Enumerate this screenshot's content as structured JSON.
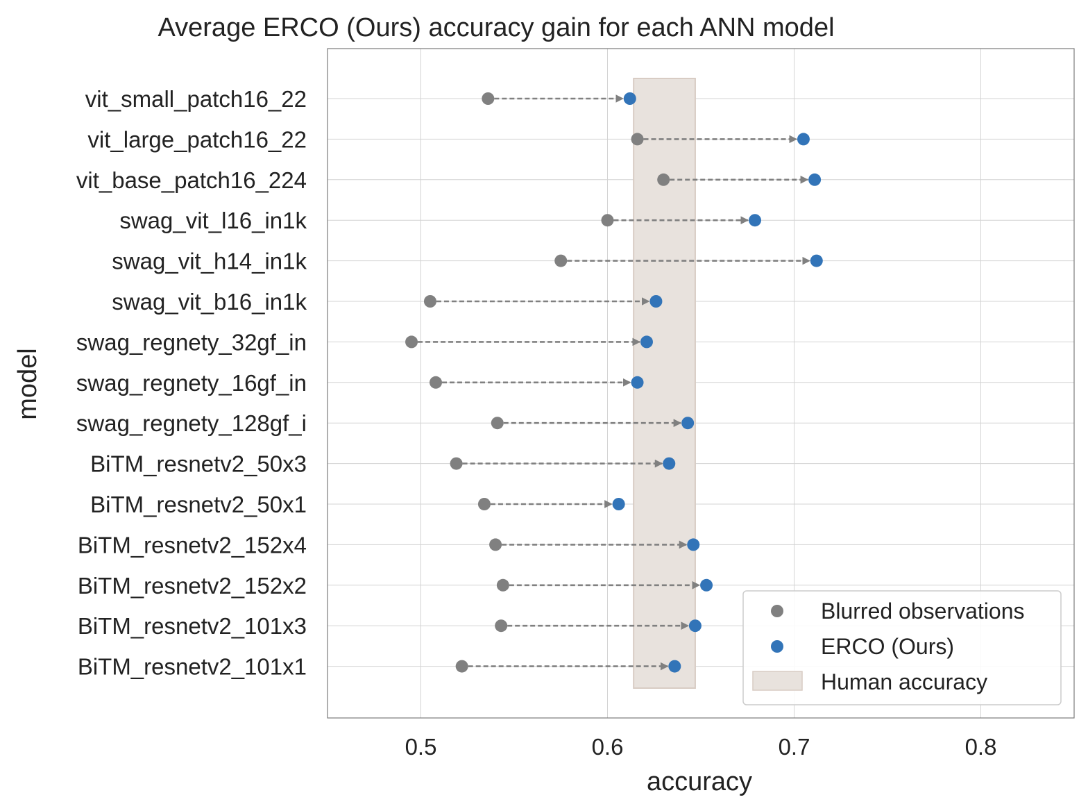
{
  "chart_data": {
    "type": "scatter",
    "title": "Average ERCO (Ours) accuracy gain for each ANN model",
    "xlabel": "accuracy",
    "ylabel": "model",
    "xlim": [
      0.45,
      0.85
    ],
    "xticks": [
      "0.5",
      "0.6",
      "0.7",
      "0.8"
    ],
    "xtick_values": [
      0.5,
      0.6,
      0.7,
      0.8
    ],
    "grid": true,
    "legend_position": "bottom-right",
    "categories": [
      "vit_small_patch16_22",
      "vit_large_patch16_22",
      "vit_base_patch16_224",
      "swag_vit_l16_in1k",
      "swag_vit_h14_in1k",
      "swag_vit_b16_in1k",
      "swag_regnety_32gf_in",
      "swag_regnety_16gf_in",
      "swag_regnety_128gf_i",
      "BiTM_resnetv2_50x3",
      "BiTM_resnetv2_50x1",
      "BiTM_resnetv2_152x4",
      "BiTM_resnetv2_152x2",
      "BiTM_resnetv2_101x3",
      "BiTM_resnetv2_101x1"
    ],
    "series": [
      {
        "name": "Blurred observations",
        "color": "#808080",
        "values": [
          0.536,
          0.616,
          0.63,
          0.6,
          0.575,
          0.505,
          0.495,
          0.508,
          0.541,
          0.519,
          0.534,
          0.54,
          0.544,
          0.543,
          0.522
        ]
      },
      {
        "name": "ERCO (Ours)",
        "color": "#3274b8",
        "values": [
          0.612,
          0.705,
          0.711,
          0.679,
          0.712,
          0.626,
          0.621,
          0.616,
          0.643,
          0.633,
          0.606,
          0.646,
          0.653,
          0.647,
          0.636
        ]
      }
    ],
    "band": {
      "name": "Human accuracy",
      "color": "#e8e2dd",
      "edge": "#d8ccc4",
      "range": [
        0.614,
        0.647
      ]
    }
  }
}
